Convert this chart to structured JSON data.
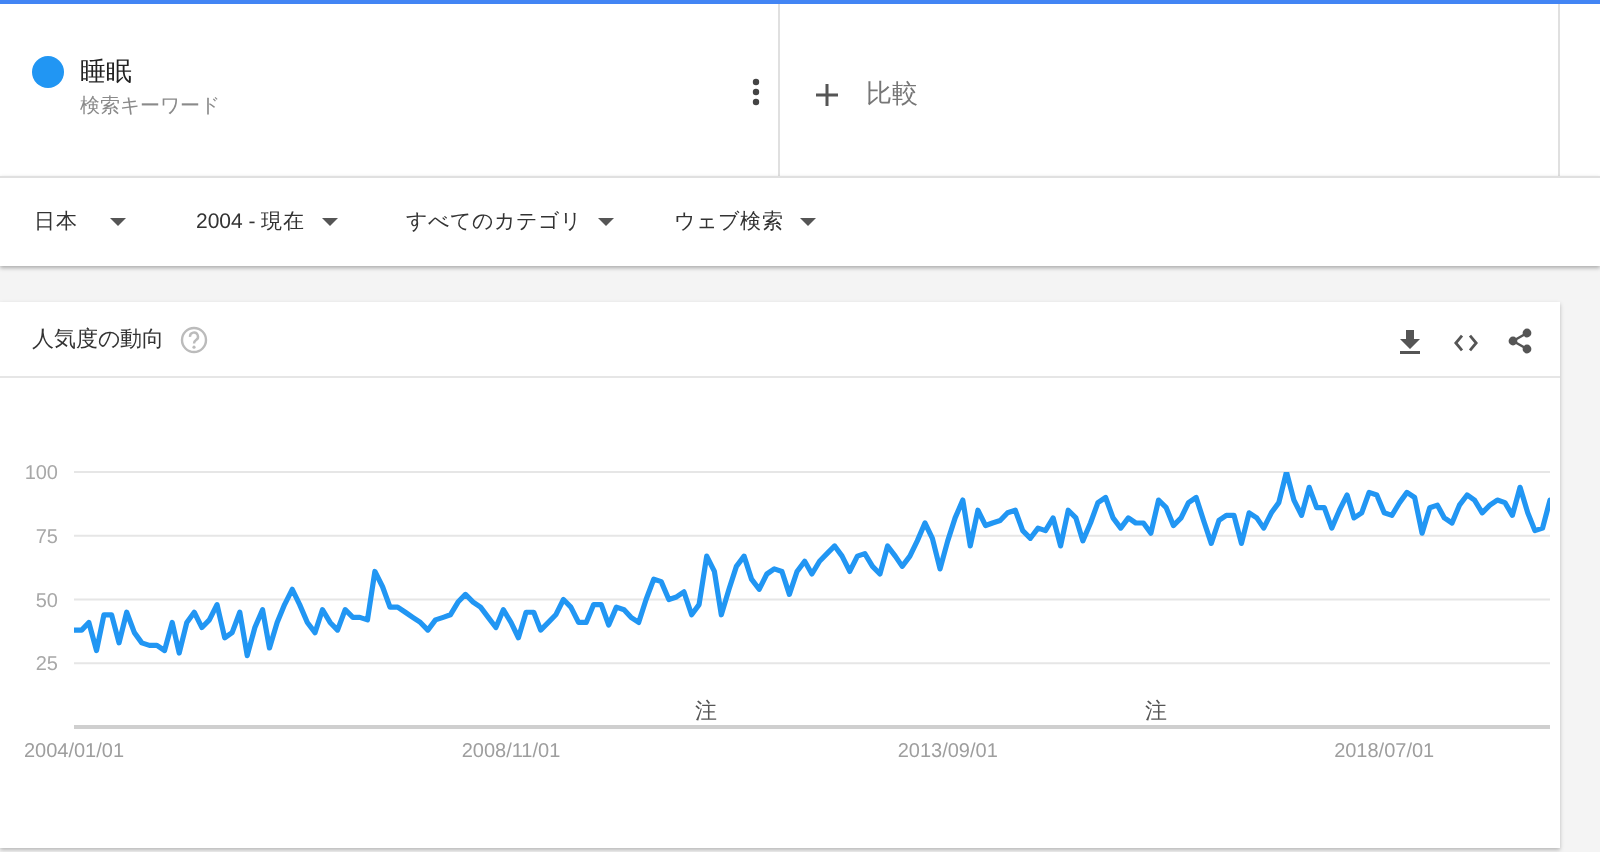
{
  "chart_data": {
    "type": "line",
    "title": "人気度の動向",
    "x": [
      "2004-01",
      "2004-02",
      "2004-03",
      "2004-04",
      "2004-05",
      "2004-06",
      "2004-07",
      "2004-08",
      "2004-09",
      "2004-10",
      "2004-11",
      "2004-12",
      "2005-01",
      "2005-02",
      "2005-03",
      "2005-04",
      "2005-05",
      "2005-06",
      "2005-07",
      "2005-08",
      "2005-09",
      "2005-10",
      "2005-11",
      "2005-12",
      "2006-01",
      "2006-02",
      "2006-03",
      "2006-04",
      "2006-05",
      "2006-06",
      "2006-07",
      "2006-08",
      "2006-09",
      "2006-10",
      "2006-11",
      "2006-12",
      "2007-01",
      "2007-02",
      "2007-03",
      "2007-04",
      "2007-05",
      "2007-06",
      "2007-07",
      "2007-08",
      "2007-09",
      "2007-10",
      "2007-11",
      "2007-12",
      "2008-01",
      "2008-02",
      "2008-03",
      "2008-04",
      "2008-05",
      "2008-06",
      "2008-07",
      "2008-08",
      "2008-09",
      "2008-10",
      "2008-11",
      "2008-12",
      "2009-01",
      "2009-02",
      "2009-03",
      "2009-04",
      "2009-05",
      "2009-06",
      "2009-07",
      "2009-08",
      "2009-09",
      "2009-10",
      "2009-11",
      "2009-12",
      "2010-01",
      "2010-02",
      "2010-03",
      "2010-04",
      "2010-05",
      "2010-06",
      "2010-07",
      "2010-08",
      "2010-09",
      "2010-10",
      "2010-11",
      "2010-12",
      "2011-01",
      "2011-02",
      "2011-03",
      "2011-04",
      "2011-05",
      "2011-06",
      "2011-07",
      "2011-08",
      "2011-09",
      "2011-10",
      "2011-11",
      "2011-12",
      "2012-01",
      "2012-02",
      "2012-03",
      "2012-04",
      "2012-05",
      "2012-06",
      "2012-07",
      "2012-08",
      "2012-09",
      "2012-10",
      "2012-11",
      "2012-12",
      "2013-01",
      "2013-02",
      "2013-03",
      "2013-04",
      "2013-05",
      "2013-06",
      "2013-07",
      "2013-08",
      "2013-09",
      "2013-10",
      "2013-11",
      "2013-12",
      "2014-01",
      "2014-02",
      "2014-03",
      "2014-04",
      "2014-05",
      "2014-06",
      "2014-07",
      "2014-08",
      "2014-09",
      "2014-10",
      "2014-11",
      "2014-12",
      "2015-01",
      "2015-02",
      "2015-03",
      "2015-04",
      "2015-05",
      "2015-06",
      "2015-07",
      "2015-08",
      "2015-09",
      "2015-10",
      "2015-11",
      "2015-12",
      "2016-01",
      "2016-02",
      "2016-03",
      "2016-04",
      "2016-05",
      "2016-06",
      "2016-07",
      "2016-08",
      "2016-09",
      "2016-10",
      "2016-11",
      "2016-12",
      "2017-01",
      "2017-02",
      "2017-03",
      "2017-04",
      "2017-05",
      "2017-06",
      "2017-07",
      "2017-08",
      "2017-09",
      "2017-10",
      "2017-11",
      "2017-12",
      "2018-01",
      "2018-02",
      "2018-03",
      "2018-04",
      "2018-05",
      "2018-06",
      "2018-07",
      "2018-08",
      "2018-09",
      "2018-10",
      "2018-11",
      "2018-12",
      "2019-01",
      "2019-02",
      "2019-03",
      "2019-04",
      "2019-05",
      "2019-06",
      "2019-07",
      "2019-08",
      "2019-09",
      "2019-10",
      "2019-11",
      "2019-12",
      "2020-01",
      "2020-02",
      "2020-03",
      "2020-04",
      "2020-05"
    ],
    "series": [
      {
        "name": "睡眠",
        "color": "#2196f3",
        "values": [
          38,
          38,
          41,
          30,
          44,
          44,
          33,
          45,
          37,
          33,
          32,
          32,
          30,
          41,
          29,
          41,
          45,
          39,
          42,
          48,
          35,
          37,
          45,
          28,
          39,
          46,
          31,
          41,
          48,
          54,
          48,
          41,
          37,
          46,
          41,
          38,
          46,
          43,
          43,
          42,
          61,
          55,
          47,
          47,
          45,
          43,
          41,
          38,
          42,
          43,
          44,
          49,
          52,
          49,
          47,
          43,
          39,
          46,
          41,
          35,
          45,
          45,
          38,
          41,
          44,
          50,
          47,
          41,
          41,
          48,
          48,
          40,
          47,
          46,
          43,
          41,
          50,
          58,
          57,
          50,
          51,
          53,
          44,
          48,
          67,
          61,
          44,
          54,
          63,
          67,
          58,
          54,
          60,
          62,
          61,
          52,
          61,
          65,
          60,
          65,
          68,
          71,
          67,
          61,
          67,
          68,
          63,
          60,
          71,
          67,
          63,
          67,
          73,
          80,
          74,
          62,
          73,
          82,
          89,
          71,
          85,
          79,
          80,
          81,
          84,
          85,
          77,
          74,
          78,
          77,
          82,
          71,
          85,
          82,
          73,
          80,
          88,
          90,
          82,
          78,
          82,
          80,
          80,
          76,
          89,
          86,
          79,
          82,
          88,
          90,
          81,
          72,
          81,
          83,
          83,
          72,
          84,
          82,
          78,
          84,
          88,
          100,
          89,
          83,
          94,
          86,
          86,
          78,
          85,
          91,
          82,
          84,
          92,
          91,
          84,
          83,
          88,
          92,
          90,
          76,
          86,
          87,
          82,
          80,
          87,
          91,
          89,
          84,
          87,
          89,
          88,
          83,
          94,
          84,
          77,
          78,
          89
        ]
      }
    ],
    "xlim": [
      "2004-01-01",
      "2020-05-01"
    ],
    "xticks": [
      {
        "value": "2004-01-01",
        "label": "2004/01/01"
      },
      {
        "value": "2008-11-01",
        "label": "2008/11/01"
      },
      {
        "value": "2013-09-01",
        "label": "2013/09/01"
      },
      {
        "value": "2018-07-01",
        "label": "2018/07/01"
      }
    ],
    "ylim": [
      0,
      100
    ],
    "yticks": [
      25,
      50,
      75,
      100
    ],
    "grid": "y",
    "legend": "top left",
    "annotations": [
      "検索キーワード",
      "比較",
      "日本",
      "2004 - 現在",
      "すべてのカテゴリ",
      "ウェブ検索",
      "注",
      "注"
    ]
  }
}
